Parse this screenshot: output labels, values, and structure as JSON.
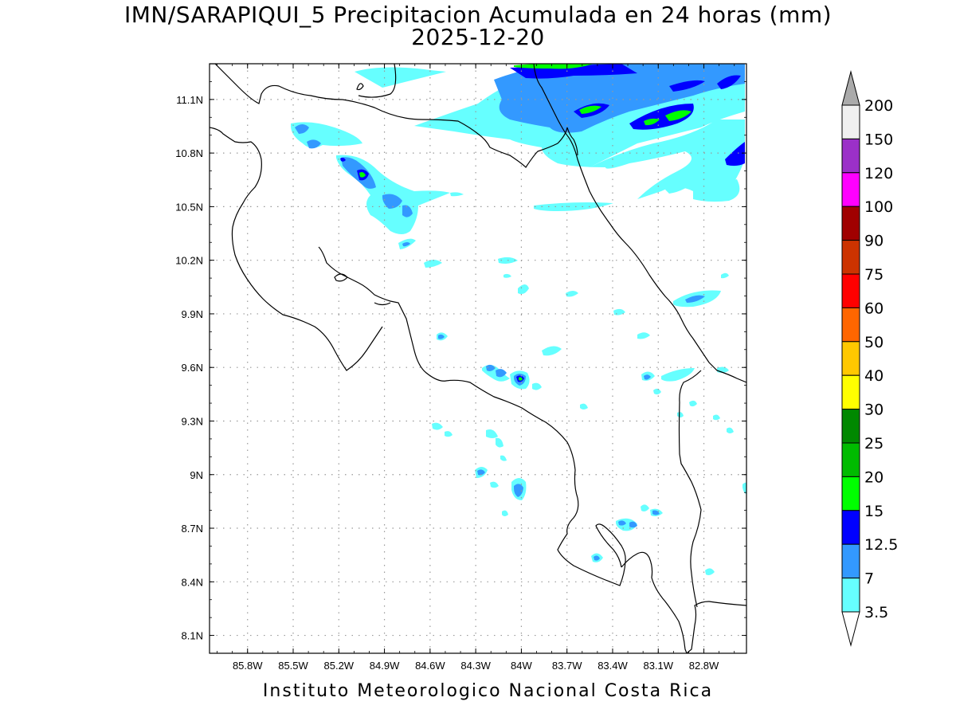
{
  "title": {
    "line1": "IMN/SARAPIQUI_5 Precipitacion Acumulada en 24 horas (mm)",
    "line2": "2025-12-20"
  },
  "footer": "Instituto Meteorologico Nacional Costa Rica",
  "map": {
    "lon_range": [
      -86.05,
      -82.52
    ],
    "lat_range": [
      8.0,
      11.3
    ],
    "x_ticks": [
      "85.8W",
      "85.5W",
      "85.2W",
      "84.9W",
      "84.6W",
      "84.3W",
      "84W",
      "83.7W",
      "83.4W",
      "83.1W",
      "82.8W"
    ],
    "y_ticks": [
      "11.1N",
      "10.8N",
      "10.5N",
      "10.2N",
      "9.9N",
      "9.6N",
      "9.3N",
      "9N",
      "8.7N",
      "8.4N",
      "8.1N"
    ],
    "grid": "dotted"
  },
  "colorbar": {
    "labels": [
      "200",
      "150",
      "120",
      "100",
      "90",
      "75",
      "60",
      "50",
      "40",
      "30",
      "25",
      "20",
      "15",
      "12.5",
      "7",
      "3.5"
    ],
    "colors": [
      "#ffffff",
      "#f0f0f0",
      "#9b30c8",
      "#ff00ff",
      "#a00000",
      "#cc3300",
      "#ff0000",
      "#ff6600",
      "#ffc800",
      "#ffff00",
      "#008800",
      "#00bb00",
      "#00ff00",
      "#0000ff",
      "#3399ff",
      "#66ffff"
    ],
    "top_arrow_color": "#aaaaaa",
    "bottom_arrow_color": "#ffffff"
  },
  "legend_colors": {
    "c3_5": "#66ffff",
    "c7": "#3399ff",
    "c12_5": "#0000ff",
    "c15": "#00ff00",
    "c20": "#00bb00"
  }
}
